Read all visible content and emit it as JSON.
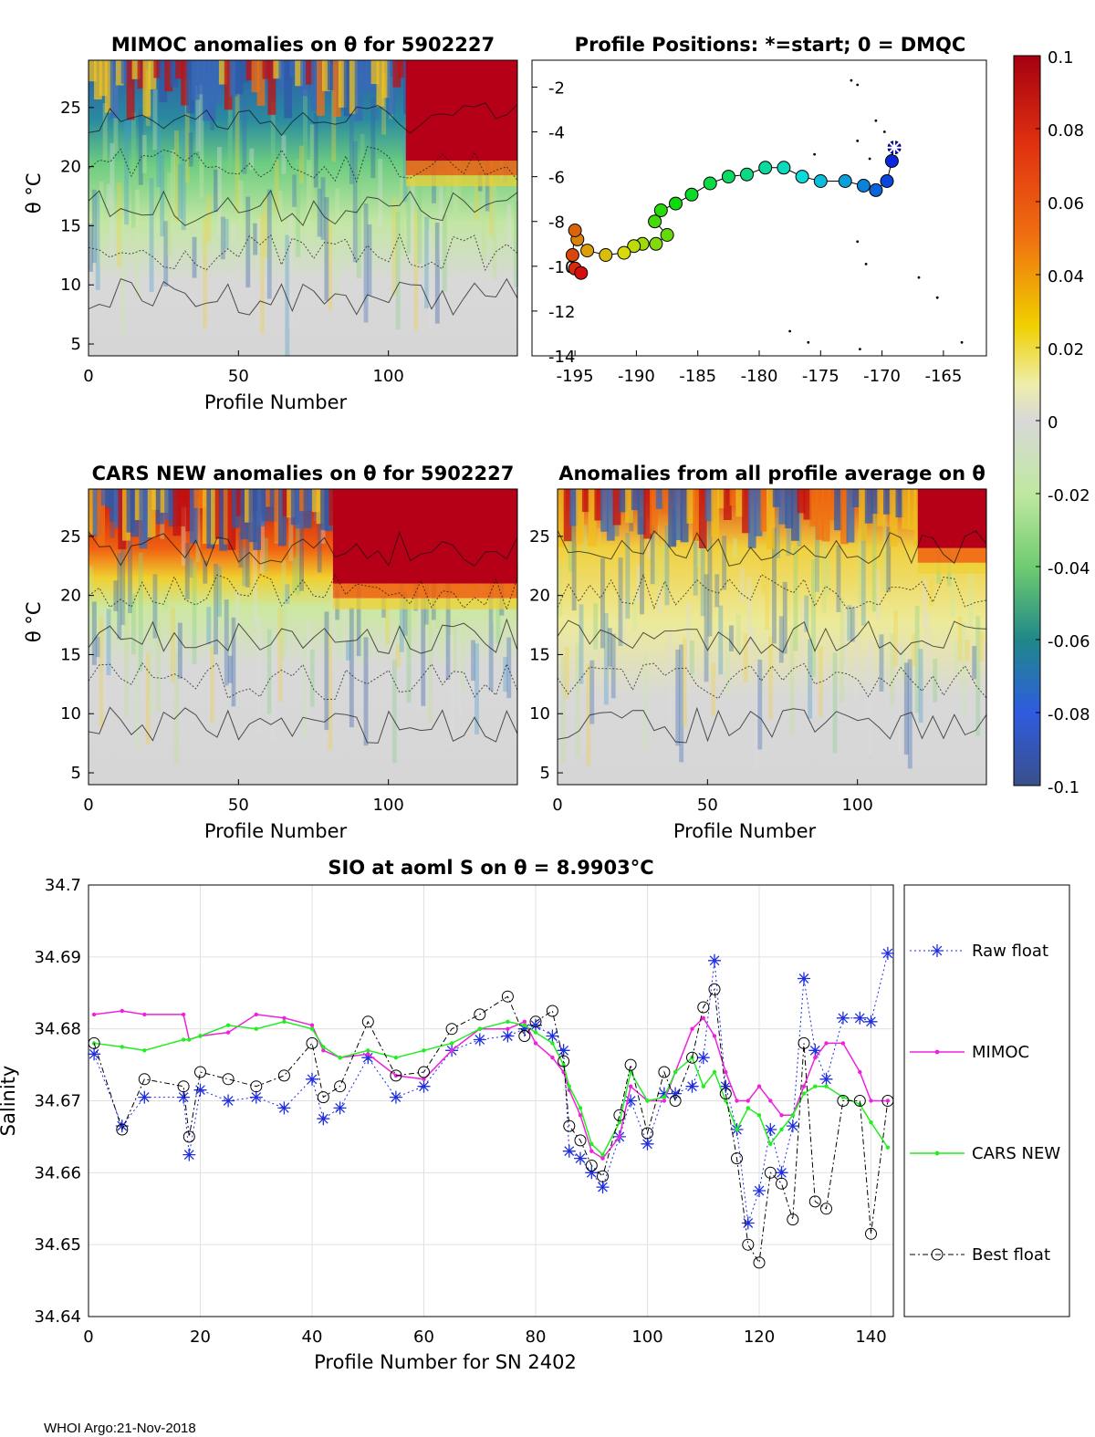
{
  "footer": "WHOI Argo:21-Nov-2018",
  "colors": {
    "raw": "#1f2ee0",
    "mimoc": "#ee22dd",
    "cars": "#22ee22",
    "best": "#000000"
  },
  "colorbar": {
    "ticks": [
      "0.1",
      "0.08",
      "0.06",
      "0.04",
      "0.02",
      "0",
      "-0.02",
      "-0.04",
      "-0.06",
      "-0.08",
      "-0.1"
    ]
  },
  "panels": [
    {
      "title": "MIMOC anomalies on θ  for 5902227",
      "xlabel": "Profile Number",
      "ylabel": "θ °C",
      "xticks": [
        "0",
        "50",
        "100"
      ],
      "yticks": [
        "25",
        "20",
        "15",
        "10",
        "5"
      ]
    },
    {
      "title": "Profile Positions: *=start; 0 = DMQC",
      "xticks": [
        "-195",
        "-190",
        "-185",
        "-180",
        "-175",
        "-170",
        "-165"
      ],
      "yticks": [
        "-2",
        "-4",
        "-6",
        "-8",
        "-10",
        "-12",
        "-14"
      ]
    },
    {
      "title": "CARS NEW anomalies on θ for 5902227",
      "xlabel": "Profile Number",
      "ylabel": "θ °C",
      "xticks": [
        "0",
        "50",
        "100"
      ],
      "yticks": [
        "25",
        "20",
        "15",
        "10",
        "5"
      ]
    },
    {
      "title": "Anomalies from all profile average on θ",
      "xlabel": "Profile Number",
      "xticks": [
        "0",
        "50",
        "100"
      ],
      "yticks": [
        "25",
        "20",
        "15",
        "10",
        "5"
      ]
    }
  ],
  "chart_data": {
    "type": "line",
    "title": "SIO at aoml S on θ = 8.9903°C",
    "xlabel": "Profile Number for SN 2402",
    "ylabel": "Salinity",
    "xlim": [
      0,
      144
    ],
    "ylim": [
      34.64,
      34.7
    ],
    "xticks": [
      "0",
      "20",
      "40",
      "60",
      "80",
      "100",
      "120",
      "140"
    ],
    "yticks": [
      "34.7",
      "34.69",
      "34.68",
      "34.67",
      "34.66",
      "34.65",
      "34.64"
    ],
    "grid": true,
    "legend": [
      "Raw float",
      "MIMOC",
      "CARS NEW",
      "Best float"
    ],
    "x": [
      1,
      6,
      10,
      17,
      18,
      20,
      25,
      30,
      35,
      40,
      42,
      45,
      50,
      55,
      60,
      65,
      70,
      75,
      78,
      80,
      83,
      85,
      86,
      88,
      90,
      92,
      95,
      97,
      100,
      103,
      105,
      108,
      110,
      112,
      114,
      116,
      118,
      120,
      122,
      124,
      126,
      128,
      130,
      132,
      135,
      138,
      140,
      143
    ],
    "series": [
      {
        "name": "Raw float",
        "values": [
          34.6765,
          34.6665,
          34.6705,
          34.6705,
          34.6625,
          34.6715,
          34.67,
          34.6705,
          34.669,
          34.673,
          34.6675,
          34.669,
          34.676,
          34.6705,
          34.672,
          34.677,
          34.6785,
          34.679,
          34.68,
          34.6805,
          34.679,
          34.677,
          34.663,
          34.662,
          34.66,
          34.658,
          34.665,
          34.67,
          34.664,
          34.671,
          34.671,
          34.672,
          34.676,
          34.6895,
          34.672,
          34.666,
          34.653,
          34.6575,
          34.666,
          34.66,
          34.6665,
          34.687,
          34.677,
          34.673,
          34.6815,
          34.6815,
          34.681,
          34.6905
        ]
      },
      {
        "name": "MIMOC",
        "values": [
          34.682,
          34.6825,
          34.682,
          34.682,
          34.6785,
          34.679,
          34.6795,
          34.682,
          34.6815,
          34.6805,
          34.677,
          34.676,
          34.6765,
          34.6735,
          34.673,
          34.677,
          34.68,
          34.68,
          34.681,
          34.678,
          34.676,
          34.674,
          34.6715,
          34.668,
          34.663,
          34.662,
          34.665,
          34.672,
          34.67,
          34.67,
          34.674,
          34.68,
          34.6815,
          34.679,
          34.674,
          34.67,
          34.67,
          34.672,
          34.67,
          34.668,
          34.668,
          34.672,
          34.676,
          34.678,
          34.678,
          34.674,
          34.67,
          34.67
        ]
      },
      {
        "name": "CARS NEW",
        "values": [
          34.678,
          34.6775,
          34.677,
          34.6785,
          34.6785,
          34.679,
          34.6805,
          34.68,
          34.681,
          34.68,
          34.6775,
          34.676,
          34.677,
          34.676,
          34.677,
          34.678,
          34.68,
          34.681,
          34.6805,
          34.6795,
          34.678,
          34.675,
          34.672,
          34.669,
          34.664,
          34.6625,
          34.667,
          34.674,
          34.67,
          34.6705,
          34.674,
          34.676,
          34.672,
          34.674,
          34.67,
          34.666,
          34.669,
          34.668,
          34.664,
          34.666,
          34.668,
          34.671,
          34.672,
          34.672,
          34.6705,
          34.6695,
          34.667,
          34.6635
        ]
      },
      {
        "name": "Best float",
        "values": [
          34.678,
          34.666,
          34.673,
          34.672,
          34.665,
          34.674,
          34.673,
          34.672,
          34.6735,
          34.678,
          34.6705,
          34.672,
          34.681,
          34.6735,
          34.674,
          34.68,
          34.682,
          34.6845,
          34.679,
          34.681,
          34.6825,
          34.6755,
          34.6665,
          34.6645,
          34.661,
          34.6595,
          34.668,
          34.675,
          34.6655,
          34.674,
          34.67,
          34.676,
          34.683,
          34.6855,
          34.671,
          34.662,
          34.65,
          34.6475,
          34.66,
          34.6585,
          34.6535,
          34.678,
          34.656,
          34.655,
          34.67,
          34.67,
          34.6515,
          34.67
        ]
      }
    ]
  }
}
